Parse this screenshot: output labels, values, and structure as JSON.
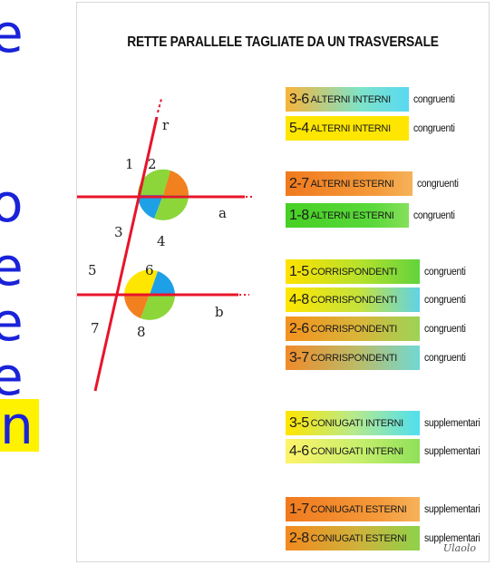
{
  "side_letters": [
    "e",
    "o",
    "e",
    "e",
    "e",
    "n"
  ],
  "title": "RETTE PARALLELE TAGLIATE DA UN TRASVERSALE",
  "diagram_labels": {
    "r": "r",
    "a": "a",
    "b": "b",
    "angles": [
      "1",
      "2",
      "3",
      "4",
      "5",
      "6",
      "7",
      "8"
    ]
  },
  "rows": [
    {
      "pair": "3-6",
      "label": "ALTERNI INTERNI",
      "relation": "congruenti"
    },
    {
      "pair": "5-4",
      "label": "ALTERNI INTERNI",
      "relation": "congruenti"
    },
    {
      "pair": "2-7",
      "label": "ALTERNI ESTERNI",
      "relation": "congruenti"
    },
    {
      "pair": "1-8",
      "label": "ALTERNI ESTERNI",
      "relation": "congruenti"
    },
    {
      "pair": "1-5",
      "label": "CORRISPONDENTI",
      "relation": "congruenti"
    },
    {
      "pair": "4-8",
      "label": "CORRISPONDENTI",
      "relation": "congruenti"
    },
    {
      "pair": "2-6",
      "label": "CORRISPONDENTI",
      "relation": "congruenti"
    },
    {
      "pair": "3-7",
      "label": "CORRISPONDENTI",
      "relation": "congruenti"
    },
    {
      "pair": "3-5",
      "label": "CONIUGATI INTERNI",
      "relation": "supplementari"
    },
    {
      "pair": "4-6",
      "label": "CONIUGATI INTERNI",
      "relation": "supplementari"
    },
    {
      "pair": "1-7",
      "label": "CONIUGATI ESTERNI",
      "relation": "supplementari"
    },
    {
      "pair": "2-8",
      "label": "CONIUGATI ESTERNI",
      "relation": "supplementari"
    }
  ],
  "signature": "Ulaolo",
  "colors": {
    "blue_text": "#1a23d8",
    "highlight": "#fff200",
    "line_red": "#e8142a",
    "yellow": "#ffe600",
    "orange": "#f2801e",
    "green": "#8cd63a",
    "blue": "#1ea0e6"
  }
}
